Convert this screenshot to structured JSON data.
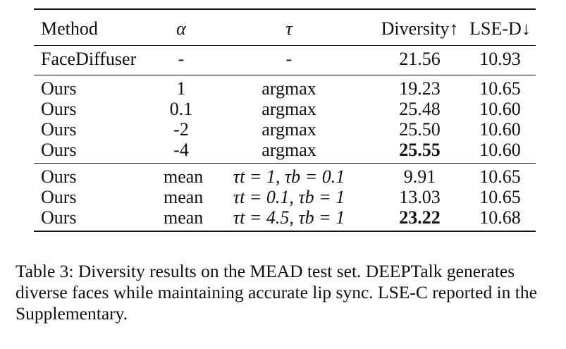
{
  "table": {
    "headers": {
      "method": "Method",
      "alpha": "α",
      "tau": "τ",
      "diversity": "Diversity↑",
      "lse_d": "LSE-D↓"
    },
    "baseline": [
      {
        "method": "FaceDiffuser",
        "alpha": "-",
        "tau": "-",
        "diversity": "21.56",
        "lse_d": "10.93"
      }
    ],
    "argmax_rows": [
      {
        "method": "Ours",
        "alpha": "1",
        "tau": "argmax",
        "diversity": "19.23",
        "lse_d": "10.65"
      },
      {
        "method": "Ours",
        "alpha": "0.1",
        "tau": "argmax",
        "diversity": "25.48",
        "lse_d": "10.60"
      },
      {
        "method": "Ours",
        "alpha": "-2",
        "tau": "argmax",
        "diversity": "25.50",
        "lse_d": "10.60"
      },
      {
        "method": "Ours",
        "alpha": "-4",
        "tau": "argmax",
        "diversity": "25.55",
        "lse_d": "10.60"
      }
    ],
    "mean_rows": [
      {
        "method": "Ours",
        "alpha": "mean",
        "tau": "τt = 1, τb = 0.1",
        "diversity": "9.91",
        "lse_d": "10.65"
      },
      {
        "method": "Ours",
        "alpha": "mean",
        "tau": "τt = 0.1, τb = 1",
        "diversity": "13.03",
        "lse_d": "10.65"
      },
      {
        "method": "Ours",
        "alpha": "mean",
        "tau": "τt = 4.5, τb = 1",
        "diversity": "23.22",
        "lse_d": "10.68"
      }
    ]
  },
  "caption": "Table 3: Diversity results on the MEAD test set. DEEPTalk generates diverse faces while maintaining accurate lip sync. LSE-C reported in the Supplementary."
}
